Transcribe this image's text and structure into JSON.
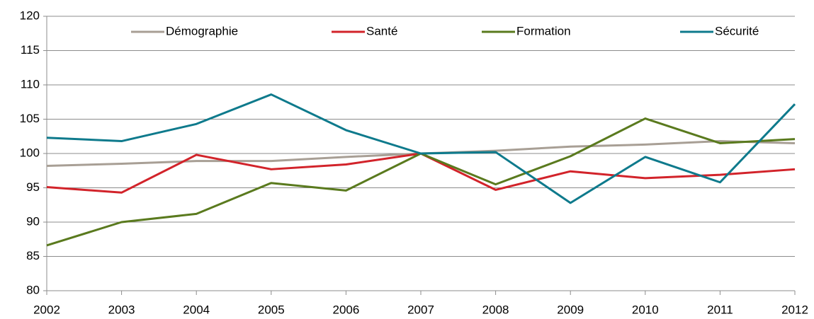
{
  "chart_data": {
    "type": "line",
    "categories": [
      "2002",
      "2003",
      "2004",
      "2005",
      "2006",
      "2007",
      "2008",
      "2009",
      "2010",
      "2011",
      "2012"
    ],
    "series": [
      {
        "name": "Démographie",
        "color": "#a89f95",
        "values": [
          98.2,
          98.5,
          98.9,
          98.9,
          99.5,
          100,
          100.4,
          101,
          101.3,
          101.8,
          101.5
        ]
      },
      {
        "name": "Santé",
        "color": "#d2232a",
        "values": [
          95.1,
          94.3,
          99.8,
          97.7,
          98.4,
          100,
          94.7,
          97.4,
          96.4,
          96.9,
          97.7
        ]
      },
      {
        "name": "Formation",
        "color": "#5a7a1e",
        "values": [
          86.6,
          90,
          91.2,
          95.7,
          94.6,
          100,
          95.5,
          99.6,
          105.1,
          101.5,
          102.1
        ]
      },
      {
        "name": "Sécurité",
        "color": "#0e7a8c",
        "values": [
          102.3,
          101.8,
          104.3,
          108.6,
          103.4,
          100,
          100.2,
          92.8,
          99.5,
          95.8,
          107.2
        ]
      }
    ],
    "ylim": [
      80,
      120
    ],
    "yticks": [
      80,
      85,
      90,
      95,
      100,
      105,
      110,
      115,
      120
    ],
    "grid": true,
    "legend": "top"
  }
}
